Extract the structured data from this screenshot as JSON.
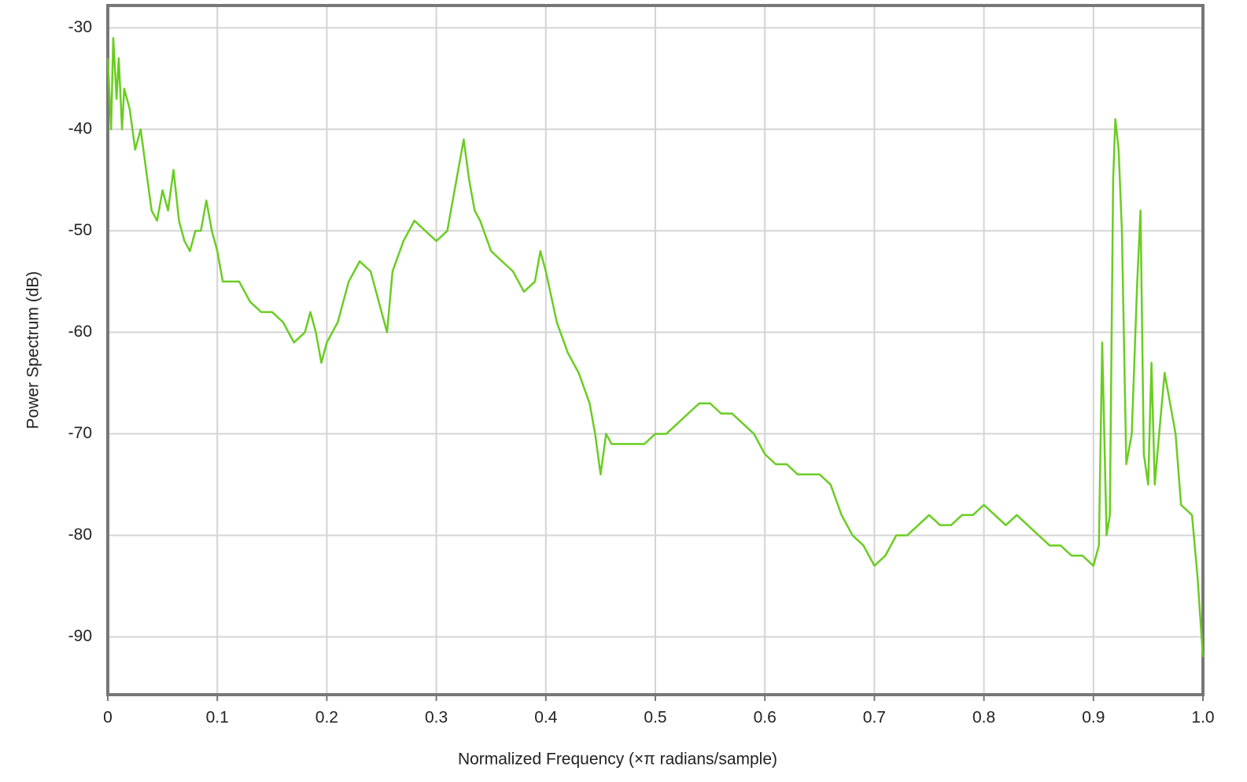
{
  "chart_data": {
    "type": "line",
    "x_label": "Normalized Frequency (×π radians/sample)",
    "y_label": "Power Spectrum (dB)",
    "xlim": [
      0,
      1
    ],
    "ylim": [
      -95.7,
      -27.8
    ],
    "xticks": [
      0,
      0.1,
      0.2,
      0.3,
      0.4,
      0.5,
      0.6,
      0.7,
      0.8,
      0.9,
      {
        "value": 1,
        "label": "1.0"
      }
    ],
    "yticks": [
      -90,
      -80,
      -70,
      -60,
      -50,
      -40,
      -30
    ],
    "grid": true,
    "series": [
      {
        "color": "#6acd22",
        "x": [
          0,
          0.003,
          0.005,
          0.008,
          0.01,
          0.013,
          0.015,
          0.02,
          0.025,
          0.03,
          0.035,
          0.04,
          0.045,
          0.05,
          0.055,
          0.06,
          0.065,
          0.07,
          0.075,
          0.08,
          0.085,
          0.09,
          0.095,
          0.1,
          0.105,
          0.11,
          0.12,
          0.13,
          0.14,
          0.15,
          0.16,
          0.17,
          0.18,
          0.185,
          0.19,
          0.195,
          0.2,
          0.21,
          0.22,
          0.23,
          0.24,
          0.25,
          0.255,
          0.26,
          0.27,
          0.28,
          0.29,
          0.3,
          0.31,
          0.315,
          0.32,
          0.325,
          0.33,
          0.335,
          0.34,
          0.35,
          0.36,
          0.37,
          0.38,
          0.39,
          0.395,
          0.4,
          0.41,
          0.42,
          0.43,
          0.44,
          0.445,
          0.45,
          0.455,
          0.46,
          0.47,
          0.48,
          0.49,
          0.5,
          0.51,
          0.52,
          0.53,
          0.54,
          0.55,
          0.56,
          0.57,
          0.58,
          0.59,
          0.6,
          0.61,
          0.62,
          0.63,
          0.64,
          0.65,
          0.66,
          0.67,
          0.68,
          0.69,
          0.7,
          0.71,
          0.72,
          0.73,
          0.74,
          0.75,
          0.76,
          0.77,
          0.78,
          0.79,
          0.8,
          0.81,
          0.82,
          0.83,
          0.84,
          0.85,
          0.86,
          0.87,
          0.88,
          0.89,
          0.9,
          0.905,
          0.908,
          0.912,
          0.915,
          0.918,
          0.92,
          0.923,
          0.926,
          0.93,
          0.935,
          0.94,
          0.943,
          0.946,
          0.95,
          0.953,
          0.956,
          0.96,
          0.965,
          0.97,
          0.975,
          0.98,
          0.99,
          0.995,
          1.0
        ],
        "values": [
          -33,
          -40,
          -31,
          -37,
          -33,
          -40,
          -36,
          -38,
          -42,
          -40,
          -44,
          -48,
          -49,
          -46,
          -48,
          -44,
          -49,
          -51,
          -52,
          -50,
          -50,
          -47,
          -50,
          -52,
          -55,
          -55,
          -55,
          -57,
          -58,
          -58,
          -59,
          -61,
          -60,
          -58,
          -60,
          -63,
          -61,
          -59,
          -55,
          -53,
          -54,
          -58,
          -60,
          -54,
          -51,
          -49,
          -50,
          -51,
          -50,
          -47,
          -44,
          -41,
          -45,
          -48,
          -49,
          -52,
          -53,
          -54,
          -56,
          -55,
          -52,
          -54,
          -59,
          -62,
          -64,
          -67,
          -70,
          -74,
          -70,
          -71,
          -71,
          -71,
          -71,
          -70,
          -70,
          -69,
          -68,
          -67,
          -67,
          -68,
          -68,
          -69,
          -70,
          -72,
          -73,
          -73,
          -74,
          -74,
          -74,
          -75,
          -78,
          -80,
          -81,
          -83,
          -82,
          -80,
          -80,
          -79,
          -78,
          -79,
          -79,
          -78,
          -78,
          -77,
          -78,
          -79,
          -78,
          -79,
          -80,
          -81,
          -81,
          -82,
          -82,
          -83,
          -81,
          -61,
          -80,
          -78,
          -45,
          -39,
          -42,
          -50,
          -73,
          -70,
          -55,
          -48,
          -72,
          -75,
          -63,
          -75,
          -70,
          -64,
          -67,
          -70,
          -77,
          -78,
          -84,
          -92
        ]
      }
    ]
  }
}
